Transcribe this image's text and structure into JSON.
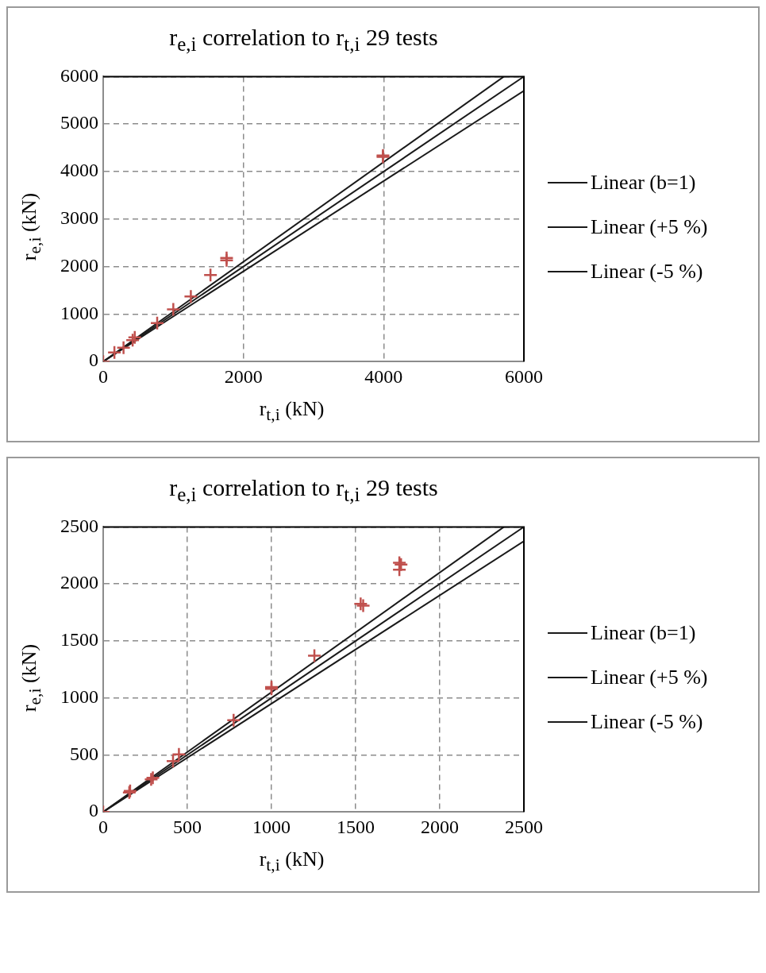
{
  "chart_data": [
    {
      "type": "scatter",
      "title": "r$_{e,i}$ correlation to r$_{t,i}$ 29 tests",
      "xlabel": "r$_{t,i}$ (kN)",
      "ylabel": "r$_{e,i}$ (kN)",
      "xlim": [
        0,
        6000
      ],
      "xticks": [
        0,
        2000,
        4000,
        6000
      ],
      "ylim": [
        0,
        6000
      ],
      "yticks": [
        0,
        1000,
        2000,
        3000,
        4000,
        5000,
        6000
      ],
      "grid": true,
      "legend": "right",
      "series": [
        {
          "marker": "cross",
          "color": "#c0504d",
          "x": [
            0,
            160,
            290,
            420,
            450,
            770,
            1000,
            1250,
            1530,
            1760,
            1760,
            3990,
            3990
          ],
          "values": [
            0,
            190,
            290,
            450,
            510,
            810,
            1100,
            1370,
            1820,
            2180,
            2130,
            4340,
            4310
          ]
        },
        {
          "type": "line",
          "name": "Linear (b=1)",
          "marker": "none",
          "color": "#1a1a1a",
          "x": [
            0,
            6000
          ],
          "values": [
            0,
            6000
          ]
        },
        {
          "type": "line",
          "name": "Linear (+5 %)",
          "marker": "none",
          "color": "#1a1a1a",
          "x": [
            0,
            5714
          ],
          "values": [
            0,
            6000
          ]
        },
        {
          "type": "line",
          "name": "Linear (-5 %)",
          "marker": "none",
          "color": "#1a1a1a",
          "x": [
            0,
            6000
          ],
          "values": [
            0,
            5700
          ]
        }
      ]
    },
    {
      "type": "scatter",
      "title": "r$_{e,i}$ correlation to r$_{t,i}$ 29 tests",
      "xlabel": "r$_{t,i}$ (kN)",
      "ylabel": "r$_{e,i}$ (kN)",
      "xlim": [
        0,
        2500
      ],
      "xticks": [
        0,
        500,
        1000,
        1500,
        2000,
        2500
      ],
      "ylim": [
        0,
        2500
      ],
      "yticks": [
        0,
        500,
        1000,
        1500,
        2000,
        2500
      ],
      "grid": true,
      "legend": "right",
      "series": [
        {
          "marker": "cross",
          "color": "#c0504d",
          "x": [
            0,
            160,
            155,
            285,
            295,
            415,
            450,
            775,
            1000,
            1000,
            1255,
            1530,
            1545,
            1760,
            1760,
            1770
          ],
          "values": [
            0,
            185,
            170,
            285,
            300,
            445,
            505,
            805,
            1095,
            1080,
            1370,
            1825,
            1810,
            2185,
            2125,
            2170
          ]
        },
        {
          "type": "line",
          "name": "Linear (b=1)",
          "marker": "none",
          "color": "#1a1a1a",
          "x": [
            0,
            2500
          ],
          "values": [
            0,
            2500
          ]
        },
        {
          "type": "line",
          "name": "Linear (+5 %)",
          "marker": "none",
          "color": "#1a1a1a",
          "x": [
            0,
            2381
          ],
          "values": [
            0,
            2500
          ]
        },
        {
          "type": "line",
          "name": "Linear (-5 %)",
          "marker": "none",
          "color": "#1a1a1a",
          "x": [
            0,
            2500
          ],
          "values": [
            0,
            2375
          ]
        }
      ]
    }
  ]
}
